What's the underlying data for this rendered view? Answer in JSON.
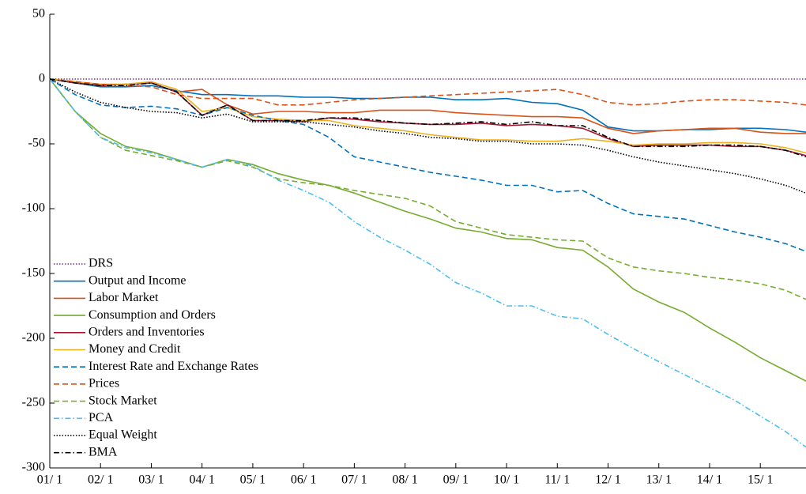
{
  "chart_data": {
    "type": "line",
    "x": [
      1,
      1.5,
      2,
      2.5,
      3,
      3.5,
      4,
      4.5,
      5,
      5.5,
      6,
      6.5,
      7,
      7.5,
      8,
      8.5,
      9,
      9.5,
      10,
      10.5,
      11,
      11.5,
      12,
      12.5,
      13,
      13.5,
      14,
      14.5,
      15,
      15.5,
      15.9
    ],
    "xlim": [
      1,
      15.9
    ],
    "xticks": [
      {
        "value": 1,
        "label": "01/ 1"
      },
      {
        "value": 2,
        "label": "02/ 1"
      },
      {
        "value": 3,
        "label": "03/ 1"
      },
      {
        "value": 4,
        "label": "04/ 1"
      },
      {
        "value": 5,
        "label": "05/ 1"
      },
      {
        "value": 6,
        "label": "06/ 1"
      },
      {
        "value": 7,
        "label": "07/ 1"
      },
      {
        "value": 8,
        "label": "08/ 1"
      },
      {
        "value": 9,
        "label": "09/ 1"
      },
      {
        "value": 10,
        "label": "10/ 1"
      },
      {
        "value": 11,
        "label": "11/ 1"
      },
      {
        "value": 12,
        "label": "12/ 1"
      },
      {
        "value": 13,
        "label": "13/ 1"
      },
      {
        "value": 14,
        "label": "14/ 1"
      },
      {
        "value": 15,
        "label": "15/ 1"
      }
    ],
    "ylim": [
      -300,
      50
    ],
    "yticks": [
      -300,
      -250,
      -200,
      -150,
      -100,
      -50,
      0,
      50
    ],
    "legend": "lower left",
    "series": [
      {
        "name": "DRS",
        "color": "#7E2F8E",
        "style": "dotted",
        "values": [
          0,
          0,
          0,
          0,
          0,
          0,
          0,
          0,
          0,
          0,
          0,
          0,
          0,
          0,
          0,
          0,
          0,
          0,
          0,
          0,
          0,
          0,
          0,
          0,
          0,
          0,
          0,
          0,
          0,
          0,
          0
        ]
      },
      {
        "name": "Output and Income",
        "color": "#0072BD",
        "style": "solid",
        "values": [
          0,
          -3,
          -6,
          -6,
          -5,
          -9,
          -12,
          -12,
          -13,
          -13,
          -14,
          -14,
          -15,
          -15,
          -14,
          -14,
          -16,
          -16,
          -15,
          -18,
          -19,
          -24,
          -37,
          -40,
          -40,
          -39,
          -39,
          -38,
          -38,
          -39,
          -41
        ]
      },
      {
        "name": "Labor Market",
        "color": "#D95319",
        "style": "solid",
        "values": [
          0,
          -2,
          -5,
          -4,
          -3,
          -10,
          -8,
          -20,
          -27,
          -25,
          -25,
          -26,
          -26,
          -24,
          -24,
          -24,
          -26,
          -27,
          -28,
          -29,
          -29,
          -30,
          -38,
          -42,
          -40,
          -39,
          -38,
          -38,
          -41,
          -42,
          -42
        ]
      },
      {
        "name": "Consumption and Orders",
        "color": "#77AC30",
        "style": "solid",
        "values": [
          0,
          -25,
          -42,
          -52,
          -56,
          -62,
          -68,
          -62,
          -66,
          -73,
          -78,
          -82,
          -88,
          -95,
          -102,
          -108,
          -115,
          -118,
          -123,
          -124,
          -130,
          -132,
          -145,
          -162,
          -172,
          -180,
          -192,
          -203,
          -215,
          -225,
          -233
        ]
      },
      {
        "name": "Orders and Inventories",
        "color": "#A2142F",
        "style": "solid",
        "values": [
          0,
          -3,
          -5,
          -4,
          -3,
          -10,
          -28,
          -20,
          -32,
          -32,
          -33,
          -30,
          -31,
          -33,
          -34,
          -35,
          -35,
          -34,
          -36,
          -35,
          -36,
          -38,
          -46,
          -52,
          -51,
          -51,
          -51,
          -52,
          -52,
          -55,
          -59
        ]
      },
      {
        "name": "Money and Credit",
        "color": "#EDB120",
        "style": "solid",
        "values": [
          0,
          -2,
          -4,
          -4,
          -2,
          -8,
          -25,
          -22,
          -29,
          -31,
          -32,
          -32,
          -36,
          -38,
          -40,
          -43,
          -45,
          -47,
          -47,
          -48,
          -48,
          -46,
          -48,
          -51,
          -50,
          -50,
          -49,
          -49,
          -50,
          -53,
          -57
        ]
      },
      {
        "name": "Interest Rate and Exchange Rates",
        "color": "#0072BD",
        "style": "dashed",
        "values": [
          0,
          -12,
          -20,
          -22,
          -21,
          -23,
          -28,
          -22,
          -28,
          -32,
          -35,
          -45,
          -60,
          -64,
          -68,
          -72,
          -75,
          -78,
          -82,
          -82,
          -87,
          -86,
          -96,
          -104,
          -106,
          -108,
          -113,
          -118,
          -122,
          -127,
          -133
        ]
      },
      {
        "name": "Prices",
        "color": "#D95319",
        "style": "dashed",
        "values": [
          0,
          -2,
          -4,
          -5,
          -6,
          -12,
          -15,
          -15,
          -15,
          -20,
          -20,
          -18,
          -16,
          -15,
          -14,
          -13,
          -12,
          -11,
          -10,
          -9,
          -8,
          -12,
          -18,
          -20,
          -19,
          -17,
          -16,
          -16,
          -17,
          -18,
          -20
        ]
      },
      {
        "name": "Stock Market",
        "color": "#77AC30",
        "style": "dashed",
        "values": [
          0,
          -25,
          -45,
          -55,
          -59,
          -63,
          -68,
          -63,
          -68,
          -77,
          -80,
          -82,
          -86,
          -89,
          -92,
          -98,
          -110,
          -115,
          -120,
          -122,
          -124,
          -125,
          -138,
          -145,
          -148,
          -150,
          -153,
          -155,
          -158,
          -163,
          -170
        ]
      },
      {
        "name": "PCA",
        "color": "#4DBEEE",
        "style": "dashdot",
        "values": [
          0,
          -25,
          -45,
          -53,
          -57,
          -62,
          -68,
          -62,
          -67,
          -78,
          -86,
          -95,
          -110,
          -122,
          -132,
          -143,
          -157,
          -165,
          -175,
          -175,
          -183,
          -185,
          -197,
          -208,
          -218,
          -228,
          -238,
          -248,
          -260,
          -272,
          -284
        ]
      },
      {
        "name": "Equal Weight",
        "color": "#000000",
        "style": "dotted",
        "values": [
          0,
          -10,
          -18,
          -22,
          -25,
          -26,
          -30,
          -27,
          -33,
          -33,
          -33,
          -35,
          -37,
          -40,
          -42,
          -45,
          -46,
          -48,
          -48,
          -50,
          -50,
          -51,
          -55,
          -60,
          -64,
          -67,
          -70,
          -73,
          -77,
          -82,
          -88
        ]
      },
      {
        "name": "BMA",
        "color": "#000000",
        "style": "dashdot",
        "values": [
          0,
          -3,
          -5,
          -5,
          -3,
          -10,
          -28,
          -20,
          -32,
          -32,
          -32,
          -30,
          -30,
          -32,
          -34,
          -35,
          -34,
          -33,
          -35,
          -33,
          -36,
          -36,
          -45,
          -52,
          -52,
          -52,
          -51,
          -51,
          -52,
          -55,
          -60
        ]
      }
    ]
  }
}
